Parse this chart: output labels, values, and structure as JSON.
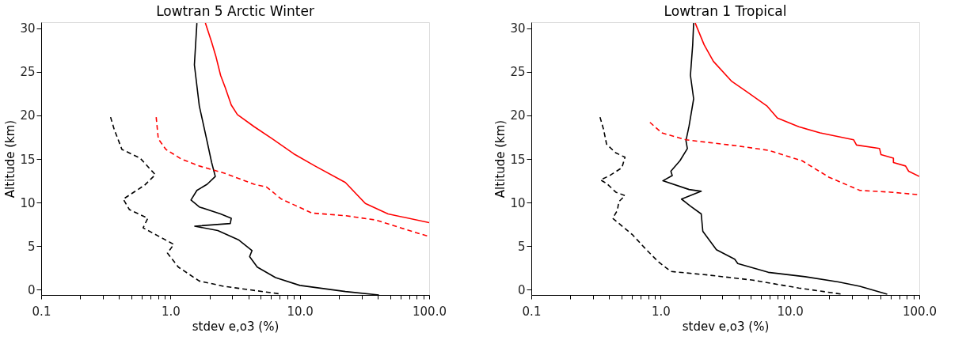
{
  "chart_data": [
    {
      "type": "line",
      "title": "Lowtran 5 Arctic Winter",
      "xlabel": "stdev e,o3 (%)",
      "ylabel": "Altitude (km)",
      "log": "x",
      "grid": false,
      "xlim": [
        0.1,
        100
      ],
      "ylim": [
        -0.6,
        30.7
      ],
      "xticks": [
        {
          "value": 0.1,
          "label": "0.1"
        },
        {
          "value": 0.2,
          "label": null
        },
        {
          "value": 0.3,
          "label": null
        },
        {
          "value": 0.4,
          "label": null
        },
        {
          "value": 0.5,
          "label": null
        },
        {
          "value": 0.6,
          "label": null
        },
        {
          "value": 0.7,
          "label": null
        },
        {
          "value": 0.8,
          "label": null
        },
        {
          "value": 0.9,
          "label": null
        },
        {
          "value": 1,
          "label": "1.0"
        },
        {
          "value": 2,
          "label": null
        },
        {
          "value": 3,
          "label": null
        },
        {
          "value": 4,
          "label": null
        },
        {
          "value": 5,
          "label": null
        },
        {
          "value": 6,
          "label": null
        },
        {
          "value": 7,
          "label": null
        },
        {
          "value": 8,
          "label": null
        },
        {
          "value": 9,
          "label": null
        },
        {
          "value": 10,
          "label": "10.0"
        },
        {
          "value": 20,
          "label": null
        },
        {
          "value": 30,
          "label": null
        },
        {
          "value": 40,
          "label": null
        },
        {
          "value": 50,
          "label": null
        },
        {
          "value": 60,
          "label": null
        },
        {
          "value": 70,
          "label": null
        },
        {
          "value": 80,
          "label": null
        },
        {
          "value": 90,
          "label": null
        },
        {
          "value": 100,
          "label": "100.0"
        }
      ],
      "yticks": [
        0,
        5,
        10,
        15,
        20,
        25,
        30
      ],
      "series": [
        {
          "color": "#000000",
          "line_style": "solid",
          "x": [
            1.6,
            1.53,
            1.67,
            1.92,
            2.08,
            2.22,
            1.92,
            1.6,
            1.44,
            1.67,
            2.44,
            2.95,
            2.9,
            1.54,
            2.32,
            3.38,
            4.27,
            4.09,
            4.69,
            6.49,
            10.0,
            22.5,
            40.9
          ],
          "values": [
            30.6,
            25.8,
            21.1,
            17.0,
            14.6,
            13.0,
            12.1,
            11.4,
            10.3,
            9.5,
            8.7,
            8.2,
            7.6,
            7.3,
            6.8,
            5.7,
            4.5,
            3.8,
            2.6,
            1.4,
            0.5,
            -0.2,
            -0.6
          ]
        },
        {
          "color": "#000000",
          "line_style": "dashed",
          "x": [
            0.344,
            0.367,
            0.421,
            0.582,
            0.763,
            0.631,
            0.431,
            0.481,
            0.667,
            0.614,
            1.06,
            0.947,
            1.15,
            1.67,
            2.58,
            7.22
          ],
          "values": [
            19.8,
            18.4,
            16.1,
            15.1,
            13.2,
            12.0,
            10.4,
            9.2,
            8.2,
            7.1,
            5.2,
            4.2,
            2.6,
            1.0,
            0.4,
            -0.5
          ]
        },
        {
          "color": "#ff0000",
          "line_style": "solid",
          "x": [
            1.86,
            2.08,
            2.25,
            2.44,
            2.65,
            2.95,
            3.29,
            4.44,
            6.14,
            8.97,
            13.1,
            22.5,
            32.1,
            48.1,
            100
          ],
          "values": [
            30.6,
            28.4,
            26.7,
            24.6,
            23.2,
            21.2,
            20.1,
            18.7,
            17.3,
            15.6,
            14.2,
            12.3,
            9.9,
            8.7,
            7.7
          ]
        },
        {
          "color": "#ff0000",
          "line_style": "dashed",
          "x": [
            0.775,
            0.805,
            0.922,
            1.21,
            1.67,
            2.58,
            4.44,
            5.51,
            7.22,
            12.4,
            22.5,
            38.7,
            66.6,
            100
          ],
          "values": [
            19.8,
            17.3,
            16.1,
            15.0,
            14.2,
            13.4,
            12.1,
            11.8,
            10.4,
            8.8,
            8.5,
            8.0,
            6.9,
            6.1
          ]
        }
      ]
    },
    {
      "type": "line",
      "title": "Lowtran 1 Tropical",
      "xlabel": "stdev e,o3 (%)",
      "ylabel": "Altitude (km)",
      "log": "x",
      "grid": false,
      "xlim": [
        0.1,
        100
      ],
      "ylim": [
        -0.6,
        30.7
      ],
      "xticks": [
        {
          "value": 0.1,
          "label": "0.1"
        },
        {
          "value": 0.2,
          "label": null
        },
        {
          "value": 0.3,
          "label": null
        },
        {
          "value": 0.4,
          "label": null
        },
        {
          "value": 0.5,
          "label": null
        },
        {
          "value": 0.6,
          "label": null
        },
        {
          "value": 0.7,
          "label": null
        },
        {
          "value": 0.8,
          "label": null
        },
        {
          "value": 0.9,
          "label": null
        },
        {
          "value": 1,
          "label": "1.0"
        },
        {
          "value": 2,
          "label": null
        },
        {
          "value": 3,
          "label": null
        },
        {
          "value": 4,
          "label": null
        },
        {
          "value": 5,
          "label": null
        },
        {
          "value": 6,
          "label": null
        },
        {
          "value": 7,
          "label": null
        },
        {
          "value": 8,
          "label": null
        },
        {
          "value": 9,
          "label": null
        },
        {
          "value": 10,
          "label": "10.0"
        },
        {
          "value": 20,
          "label": null
        },
        {
          "value": 30,
          "label": null
        },
        {
          "value": 40,
          "label": null
        },
        {
          "value": 50,
          "label": null
        },
        {
          "value": 60,
          "label": null
        },
        {
          "value": 70,
          "label": null
        },
        {
          "value": 80,
          "label": null
        },
        {
          "value": 90,
          "label": null
        },
        {
          "value": 100,
          "label": "100.0"
        }
      ],
      "yticks": [
        0,
        5,
        10,
        15,
        20,
        25,
        30
      ],
      "series": [
        {
          "color": "#000000",
          "line_style": "solid",
          "x": [
            1.8,
            1.77,
            1.7,
            1.8,
            1.66,
            1.57,
            1.61,
            1.41,
            1.2,
            1.23,
            1.04,
            1.66,
            2.06,
            1.45,
            1.7,
            2.06,
            2.12,
            2.7,
            3.74,
            3.95,
            6.8,
            13.1,
            23.7,
            34.7,
            56.5
          ],
          "values": [
            30.6,
            28.1,
            24.6,
            21.9,
            18.8,
            17.1,
            16.2,
            14.8,
            13.6,
            13.1,
            12.5,
            11.5,
            11.3,
            10.4,
            9.6,
            8.7,
            6.7,
            4.6,
            3.5,
            3.0,
            2.0,
            1.5,
            0.9,
            0.4,
            -0.5
          ]
        },
        {
          "color": "#000000",
          "line_style": "dashed",
          "x": [
            0.34,
            0.362,
            0.382,
            0.45,
            0.53,
            0.502,
            0.404,
            0.343,
            0.382,
            0.45,
            0.53,
            0.475,
            0.463,
            0.426,
            0.607,
            0.775,
            0.962,
            1.2,
            2.3,
            5.18,
            11.7,
            25.0
          ],
          "values": [
            19.8,
            18.4,
            16.7,
            15.7,
            15.2,
            14.0,
            13.1,
            12.6,
            12.2,
            11.2,
            10.8,
            10.1,
            9.1,
            8.2,
            6.3,
            4.6,
            3.2,
            2.1,
            1.7,
            1.1,
            0.2,
            -0.5
          ]
        },
        {
          "color": "#ff0000",
          "line_style": "solid",
          "x": [
            1.85,
            2.17,
            2.56,
            3.55,
            4.65,
            6.62,
            8.0,
            11.7,
            17.1,
            31.1,
            32.7,
            49.3,
            50.6,
            63.1,
            63.1,
            78.3,
            82.7,
            100
          ],
          "values": [
            30.6,
            28.1,
            26.2,
            23.9,
            22.7,
            21.1,
            19.7,
            18.7,
            18.0,
            17.2,
            16.6,
            16.2,
            15.5,
            15.1,
            14.6,
            14.2,
            13.6,
            13.0
          ]
        },
        {
          "color": "#ff0000",
          "line_style": "dashed",
          "x": [
            0.827,
            1.02,
            1.57,
            3.95,
            6.8,
            12.4,
            20.1,
            34.7,
            59.7,
            100
          ],
          "values": [
            19.2,
            18.0,
            17.2,
            16.5,
            16.0,
            14.8,
            12.9,
            11.4,
            11.2,
            10.9
          ]
        }
      ]
    }
  ]
}
